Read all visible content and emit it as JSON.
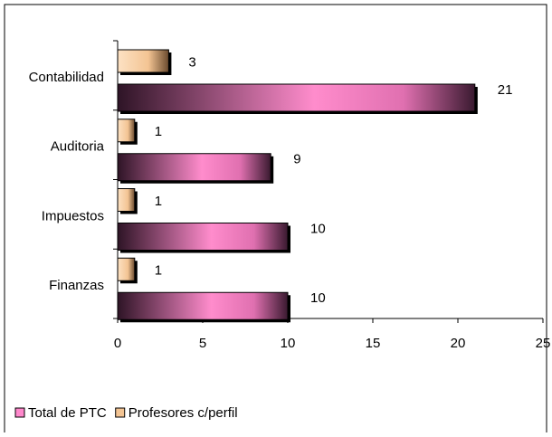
{
  "chart_data": {
    "type": "barh",
    "categories": [
      "Contabilidad",
      "Auditoria",
      "Impuestos",
      "Finanzas"
    ],
    "series": [
      {
        "name": "Total de PTC",
        "color": "#ff88cc",
        "values": [
          21,
          9,
          10,
          10
        ]
      },
      {
        "name": "Profesores c/perfil",
        "color": "#f3c493",
        "values": [
          3,
          1,
          1,
          1
        ]
      }
    ],
    "xlim": [
      0,
      25
    ],
    "xticks": [
      0,
      5,
      10,
      15,
      20,
      25
    ],
    "legend": "bottom-left"
  }
}
